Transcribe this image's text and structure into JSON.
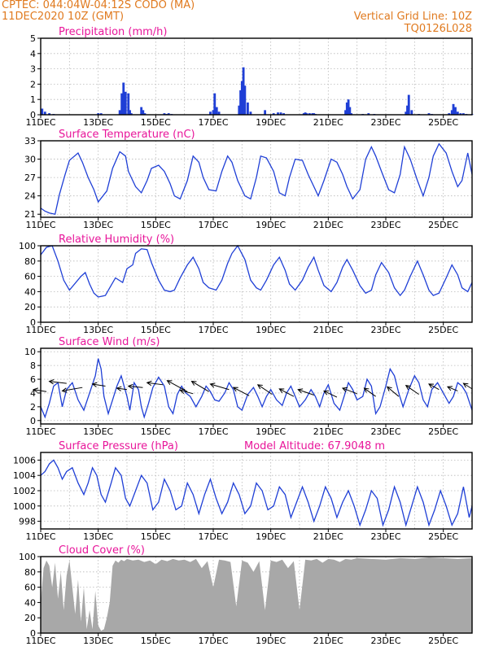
{
  "header": {
    "line1": "CPTEC:    044:04W-04:12S   CODO (MA)",
    "line2": "11DEC2020 10Z (GMT)",
    "grid_line": "Vertical Grid Line: 10Z",
    "code": "TQ0126L028"
  },
  "colors": {
    "header": "#e07a1f",
    "title": "#e8159a",
    "series": "#1f3fd6",
    "cloud": "#a8a8a8"
  },
  "x_axis": {
    "ticks": [
      "11DEC",
      "13DEC",
      "15DEC",
      "17DEC",
      "19DEC",
      "21DEC",
      "23DEC",
      "25DEC"
    ],
    "day_range": [
      0,
      15
    ],
    "tick_every_days": 2
  },
  "chart_data": [
    {
      "type": "bar",
      "title": "Precipitation (mm/h)",
      "ylim": [
        0,
        5
      ],
      "yticks": [
        0,
        1,
        2,
        3,
        4,
        5
      ],
      "x_days": [
        0.05,
        0.15,
        0.3,
        0.45,
        2.0,
        2.1,
        2.75,
        2.82,
        2.88,
        2.95,
        3.05,
        3.1,
        3.15,
        3.5,
        3.56,
        3.62,
        4.3,
        4.38,
        4.45,
        4.55,
        5.9,
        6.0,
        6.05,
        6.12,
        6.2,
        6.9,
        6.95,
        7.0,
        7.05,
        7.1,
        7.2,
        7.3,
        7.8,
        8.1,
        8.25,
        8.35,
        8.45,
        9.15,
        9.2,
        9.25,
        9.35,
        9.45,
        9.5,
        9.55,
        10.6,
        10.65,
        10.7,
        10.75,
        10.8,
        11.2,
        11.4,
        11.6,
        12.7,
        12.75,
        12.8,
        12.9,
        13.15,
        13.5,
        13.6,
        14.2,
        14.3,
        14.35,
        14.42,
        14.5,
        14.6,
        14.7,
        14.8,
        15.0
      ],
      "values": [
        0.4,
        0.2,
        0.1,
        0.05,
        0.1,
        0.1,
        0.3,
        1.4,
        2.1,
        1.5,
        1.4,
        0.3,
        0.1,
        0.5,
        0.3,
        0.1,
        0.1,
        0.05,
        0.1,
        0.05,
        0.2,
        0.3,
        1.4,
        0.5,
        0.2,
        0.6,
        1.6,
        2.2,
        3.1,
        1.9,
        0.8,
        0.2,
        0.3,
        0.1,
        0.15,
        0.15,
        0.1,
        0.1,
        0.15,
        0.1,
        0.1,
        0.1,
        0.1,
        0.05,
        0.3,
        0.8,
        1.0,
        0.5,
        0.1,
        0.05,
        0.1,
        0.05,
        0.2,
        0.6,
        1.3,
        0.3,
        0.05,
        0.1,
        0.05,
        0.1,
        0.3,
        0.7,
        0.5,
        0.2,
        0.1,
        0.1,
        0.05,
        0.05
      ]
    },
    {
      "type": "line",
      "title": "Surface Temperature (nC)",
      "ylim": [
        20.5,
        33
      ],
      "yticks": [
        21,
        24,
        27,
        30,
        33
      ],
      "x": [
        0,
        0.15,
        0.3,
        0.5,
        0.65,
        0.85,
        1.0,
        1.3,
        1.45,
        1.65,
        1.85,
        2.0,
        2.3,
        2.5,
        2.75,
        2.95,
        3.05,
        3.3,
        3.5,
        3.7,
        3.85,
        4.1,
        4.3,
        4.5,
        4.65,
        4.85,
        5.1,
        5.3,
        5.5,
        5.65,
        5.85,
        6.1,
        6.3,
        6.5,
        6.65,
        6.85,
        7.1,
        7.3,
        7.5,
        7.65,
        7.85,
        8.1,
        8.3,
        8.5,
        8.65,
        8.85,
        9.1,
        9.3,
        9.5,
        9.65,
        9.85,
        10.1,
        10.3,
        10.5,
        10.65,
        10.85,
        11.1,
        11.3,
        11.5,
        11.65,
        11.85,
        12.1,
        12.3,
        12.5,
        12.65,
        12.85,
        13.1,
        13.3,
        13.5,
        13.65,
        13.85,
        14.1,
        14.3,
        14.5,
        14.65,
        14.85,
        15.0
      ],
      "y": [
        22.0,
        21.5,
        21.2,
        21.0,
        24.2,
        27.5,
        29.8,
        31.0,
        29.5,
        27.0,
        25.0,
        23.0,
        24.8,
        28.5,
        31.2,
        30.5,
        28.0,
        25.5,
        24.5,
        26.5,
        28.5,
        29.0,
        28.0,
        26.0,
        24.0,
        23.5,
        26.5,
        30.5,
        29.5,
        27.0,
        25.0,
        24.8,
        28.0,
        30.5,
        29.5,
        26.5,
        24.0,
        23.5,
        27.0,
        30.5,
        30.2,
        28.0,
        24.5,
        24.0,
        27.0,
        30.0,
        29.8,
        27.5,
        25.5,
        24.0,
        26.5,
        30.0,
        29.5,
        27.5,
        25.5,
        23.5,
        25.0,
        30.0,
        32.0,
        30.5,
        28.0,
        25.0,
        24.5,
        27.5,
        32.0,
        30.0,
        26.5,
        24.0,
        27.0,
        30.5,
        32.5,
        31.0,
        28.0,
        25.5,
        26.5,
        31.0,
        27.5
      ]
    },
    {
      "type": "line",
      "title": "Relative Humidity (%)",
      "ylim": [
        0,
        100
      ],
      "yticks": [
        0,
        20,
        40,
        60,
        80,
        100
      ],
      "x": [
        0,
        0.2,
        0.4,
        0.6,
        0.8,
        1.0,
        1.4,
        1.55,
        1.7,
        1.85,
        2.0,
        2.25,
        2.4,
        2.6,
        2.85,
        3.0,
        3.2,
        3.3,
        3.5,
        3.7,
        3.85,
        4.1,
        4.3,
        4.5,
        4.65,
        4.85,
        5.1,
        5.3,
        5.5,
        5.65,
        5.85,
        6.1,
        6.3,
        6.5,
        6.65,
        6.85,
        7.1,
        7.3,
        7.5,
        7.65,
        7.85,
        8.1,
        8.3,
        8.5,
        8.65,
        8.85,
        9.1,
        9.3,
        9.5,
        9.65,
        9.85,
        10.1,
        10.3,
        10.5,
        10.65,
        10.85,
        11.1,
        11.3,
        11.5,
        11.65,
        11.85,
        12.1,
        12.3,
        12.5,
        12.65,
        12.85,
        13.1,
        13.3,
        13.5,
        13.65,
        13.85,
        14.1,
        14.3,
        14.5,
        14.65,
        14.85,
        15.0
      ],
      "y": [
        88,
        98,
        100,
        80,
        55,
        42,
        60,
        65,
        50,
        38,
        33,
        35,
        45,
        58,
        52,
        70,
        75,
        90,
        96,
        95,
        78,
        55,
        42,
        40,
        42,
        58,
        75,
        85,
        70,
        52,
        45,
        42,
        55,
        77,
        90,
        100,
        82,
        55,
        45,
        42,
        55,
        75,
        85,
        68,
        50,
        42,
        55,
        72,
        85,
        68,
        48,
        40,
        52,
        72,
        82,
        68,
        48,
        38,
        42,
        62,
        78,
        65,
        45,
        35,
        42,
        60,
        80,
        62,
        42,
        35,
        38,
        58,
        75,
        62,
        45,
        40,
        52
      ]
    },
    {
      "type": "line",
      "title": "Surface Wind (m/s)",
      "ylim": [
        -0.5,
        10.5
      ],
      "yticks": [
        0,
        2,
        4,
        6,
        8,
        10
      ],
      "x": [
        0,
        0.15,
        0.3,
        0.45,
        0.6,
        0.75,
        0.9,
        1.1,
        1.3,
        1.5,
        1.7,
        1.9,
        2.0,
        2.1,
        2.2,
        2.35,
        2.5,
        2.65,
        2.8,
        3.0,
        3.1,
        3.25,
        3.4,
        3.5,
        3.6,
        3.75,
        3.9,
        4.1,
        4.3,
        4.45,
        4.6,
        4.75,
        4.9,
        5.05,
        5.2,
        5.4,
        5.6,
        5.75,
        5.9,
        6.05,
        6.2,
        6.4,
        6.55,
        6.7,
        6.85,
        7.0,
        7.2,
        7.4,
        7.55,
        7.7,
        7.85,
        8.0,
        8.2,
        8.4,
        8.55,
        8.7,
        8.85,
        9.0,
        9.2,
        9.4,
        9.55,
        9.7,
        9.85,
        10.0,
        10.2,
        10.4,
        10.55,
        10.7,
        10.85,
        11.0,
        11.2,
        11.35,
        11.5,
        11.65,
        11.8,
        12.0,
        12.15,
        12.3,
        12.45,
        12.6,
        12.8,
        13.0,
        13.15,
        13.3,
        13.45,
        13.6,
        13.8,
        14.0,
        14.2,
        14.35,
        14.5,
        14.65,
        14.8,
        15.0
      ],
      "y": [
        2.0,
        0.5,
        2.5,
        5.0,
        5.5,
        2.0,
        4.5,
        5.5,
        3.0,
        1.5,
        4.0,
        6.5,
        9.0,
        7.5,
        3.5,
        1.0,
        3.0,
        5.0,
        6.5,
        3.5,
        1.5,
        5.5,
        4.5,
        2.0,
        0.5,
        2.5,
        4.8,
        6.3,
        5.0,
        2.0,
        1.0,
        3.8,
        5.0,
        4.0,
        3.5,
        2.0,
        3.5,
        5.0,
        4.2,
        3.0,
        2.8,
        4.0,
        5.5,
        4.5,
        2.0,
        1.5,
        3.8,
        4.8,
        3.5,
        2.0,
        3.5,
        4.5,
        3.0,
        2.2,
        4.0,
        5.0,
        3.5,
        2.0,
        3.0,
        4.5,
        3.5,
        2.0,
        4.0,
        5.2,
        2.5,
        1.5,
        3.5,
        5.5,
        4.5,
        3.0,
        3.5,
        6.0,
        5.0,
        1.0,
        2.0,
        5.0,
        7.5,
        6.5,
        4.0,
        2.0,
        4.5,
        6.5,
        5.5,
        3.0,
        2.0,
        4.5,
        5.5,
        4.0,
        2.5,
        3.5,
        5.5,
        5.0,
        4.0,
        1.5
      ],
      "arrows": {
        "x": [
          0.2,
          0.9,
          1.45,
          2.25,
          3.0,
          3.55,
          4.25,
          5.1,
          5.3,
          5.85,
          6.55,
          7.25,
          8.05,
          8.8,
          9.5,
          10.3,
          11.0,
          11.65,
          12.45,
          13.15,
          13.85,
          14.5,
          15.0
        ],
        "y": [
          4.2,
          5.4,
          4.8,
          5.0,
          4.5,
          4.8,
          5.2,
          4.2,
          3.9,
          4.2,
          4.5,
          3.6,
          3.8,
          3.5,
          3.7,
          3.4,
          3.9,
          3.5,
          3.5,
          3.8,
          4.5,
          4.3,
          4.6
        ],
        "dx_days": [
          -0.45,
          -0.6,
          -0.7,
          -0.45,
          -0.35,
          -0.5,
          -0.55,
          -0.7,
          -0.45,
          -0.6,
          -0.65,
          -0.55,
          -0.5,
          -0.5,
          -0.55,
          -0.45,
          -0.5,
          -0.4,
          -0.4,
          -0.45,
          -0.35,
          -0.35,
          -0.3
        ],
        "dy": [
          0.3,
          0.3,
          -0.5,
          0.3,
          0.2,
          0.2,
          0.3,
          1.6,
          0.5,
          1.5,
          0.8,
          1.2,
          1.4,
          1.1,
          0.8,
          0.9,
          0.8,
          1.2,
          1.4,
          1.3,
          0.8,
          0.6,
          0.8
        ]
      }
    },
    {
      "type": "line",
      "title": "Surface Pressure (hPa)",
      "annotation": "Model Altitude: 67.9048 m",
      "ylim": [
        997,
        1007
      ],
      "yticks": [
        998,
        1000,
        1002,
        1004,
        1006
      ],
      "x": [
        0,
        0.15,
        0.3,
        0.45,
        0.6,
        0.75,
        0.9,
        1.1,
        1.3,
        1.5,
        1.65,
        1.8,
        1.95,
        2.1,
        2.25,
        2.45,
        2.6,
        2.8,
        2.95,
        3.1,
        3.3,
        3.5,
        3.7,
        3.9,
        4.1,
        4.3,
        4.5,
        4.7,
        4.9,
        5.1,
        5.3,
        5.5,
        5.7,
        5.9,
        6.1,
        6.3,
        6.5,
        6.7,
        6.9,
        7.1,
        7.3,
        7.5,
        7.7,
        7.9,
        8.1,
        8.3,
        8.5,
        8.7,
        8.9,
        9.1,
        9.3,
        9.5,
        9.7,
        9.9,
        10.1,
        10.3,
        10.5,
        10.7,
        10.9,
        11.1,
        11.3,
        11.5,
        11.7,
        11.9,
        12.1,
        12.3,
        12.5,
        12.7,
        12.9,
        13.1,
        13.3,
        13.5,
        13.7,
        13.9,
        14.1,
        14.3,
        14.5,
        14.7,
        14.9,
        15.0
      ],
      "y": [
        1004.0,
        1004.5,
        1005.5,
        1006.0,
        1005.0,
        1003.5,
        1004.5,
        1005.0,
        1003.0,
        1001.5,
        1003.0,
        1005.0,
        1004.0,
        1001.5,
        1000.5,
        1003.0,
        1005.0,
        1004.0,
        1001.0,
        1000.0,
        1002.0,
        1004.0,
        1003.0,
        999.5,
        1000.5,
        1003.5,
        1002.0,
        999.5,
        1000.0,
        1003.0,
        1001.5,
        999.0,
        1001.5,
        1003.5,
        1001.0,
        999.0,
        1000.5,
        1003.0,
        1001.5,
        999.0,
        1000.0,
        1003.0,
        1002.0,
        999.5,
        1000.0,
        1002.5,
        1001.5,
        998.5,
        1000.5,
        1002.5,
        1000.5,
        998.0,
        1000.0,
        1002.5,
        1001.0,
        998.5,
        1000.5,
        1002.0,
        1000.0,
        997.5,
        999.5,
        1002.0,
        1001.0,
        997.5,
        999.5,
        1002.5,
        1000.5,
        997.5,
        1000.0,
        1002.5,
        1000.5,
        997.5,
        999.5,
        1002.0,
        1000.0,
        997.5,
        999.0,
        1002.5,
        998.5,
        1000.0
      ]
    },
    {
      "type": "area",
      "title": "Cloud Cover (%)",
      "ylim": [
        0,
        100
      ],
      "yticks": [
        0,
        20,
        40,
        60,
        80,
        100
      ],
      "x": [
        0,
        0.1,
        0.2,
        0.3,
        0.4,
        0.5,
        0.6,
        0.7,
        0.8,
        0.9,
        1.0,
        1.1,
        1.2,
        1.3,
        1.4,
        1.5,
        1.6,
        1.7,
        1.8,
        1.9,
        2.0,
        2.1,
        2.2,
        2.3,
        2.4,
        2.5,
        2.6,
        2.7,
        2.8,
        2.9,
        3.0,
        3.2,
        3.4,
        3.6,
        3.8,
        4.0,
        4.2,
        4.4,
        4.6,
        4.8,
        5.0,
        5.2,
        5.4,
        5.6,
        5.8,
        6.0,
        6.2,
        6.4,
        6.6,
        6.8,
        7.0,
        7.2,
        7.4,
        7.6,
        7.8,
        8.0,
        8.2,
        8.4,
        8.6,
        8.8,
        9.0,
        9.2,
        9.4,
        9.6,
        9.8,
        10.0,
        10.2,
        10.4,
        10.6,
        10.8,
        11.0,
        11.5,
        12.0,
        12.5,
        13.0,
        13.5,
        14.0,
        14.5,
        15.0
      ],
      "y": [
        40,
        85,
        95,
        88,
        60,
        92,
        45,
        80,
        30,
        75,
        95,
        60,
        25,
        70,
        15,
        60,
        5,
        30,
        5,
        55,
        10,
        3,
        5,
        20,
        40,
        88,
        95,
        92,
        96,
        94,
        97,
        95,
        96,
        93,
        95,
        90,
        96,
        94,
        97,
        95,
        96,
        93,
        97,
        85,
        94,
        60,
        96,
        95,
        93,
        35,
        95,
        92,
        80,
        94,
        30,
        95,
        93,
        96,
        85,
        94,
        30,
        96,
        95,
        97,
        92,
        97,
        96,
        93,
        97,
        96,
        98,
        97,
        96,
        98,
        97,
        99,
        98,
        97,
        98
      ]
    }
  ]
}
